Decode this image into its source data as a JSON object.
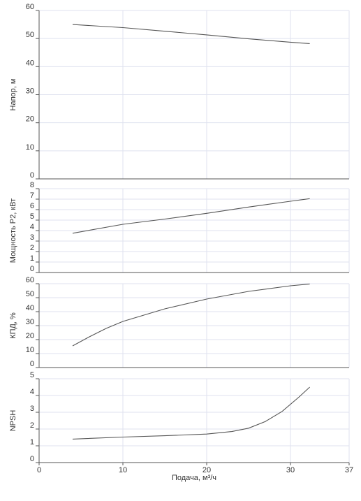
{
  "chart_data": {
    "type": "line",
    "xlabel": "Подача, м³/ч",
    "xlim": [
      0,
      37
    ],
    "xticks": [
      0,
      10,
      20,
      30,
      37
    ],
    "grid": true,
    "colors": {
      "curve": "#555555",
      "grid": "#dfe2ef",
      "axis": "#555555"
    },
    "panels": [
      {
        "ylabel": "Напор, м",
        "ylim": [
          0,
          60
        ],
        "yticks": [
          0,
          10,
          20,
          30,
          40,
          50,
          60
        ],
        "series": [
          {
            "x": [
              4,
              10,
              15,
              20,
              25,
              30,
              32.3
            ],
            "y": [
              55,
              53.9,
              52.6,
              51.3,
              49.9,
              48.7,
              48.2
            ]
          }
        ]
      },
      {
        "ylabel": "Мощность Р2, кВт",
        "ylim": [
          0,
          8
        ],
        "yticks": [
          0,
          1,
          2,
          3,
          4,
          5,
          6,
          7,
          8
        ],
        "series": [
          {
            "x": [
              4,
              10,
              15,
              20,
              25,
              30,
              32.3
            ],
            "y": [
              3.75,
              4.6,
              5.1,
              5.65,
              6.25,
              6.8,
              7.05
            ]
          }
        ]
      },
      {
        "ylabel": "КПД, %",
        "ylim": [
          0,
          60
        ],
        "yticks": [
          0,
          10,
          20,
          30,
          40,
          50,
          60
        ],
        "series": [
          {
            "x": [
              4,
              6,
              8,
              10,
              15,
              20,
              25,
              30,
              32.3
            ],
            "y": [
              15.5,
              22,
              28,
              33,
              42,
              49,
              54.5,
              58.5,
              59.8
            ]
          }
        ]
      },
      {
        "ylabel": "NPSH",
        "ylim": [
          0,
          5
        ],
        "yticks": [
          0,
          1,
          2,
          3,
          4,
          5
        ],
        "series": [
          {
            "x": [
              4,
              10,
              15,
              20,
              23,
              25,
              27,
              29,
              31,
              32.3
            ],
            "y": [
              1.4,
              1.52,
              1.6,
              1.7,
              1.85,
              2.05,
              2.45,
              3.05,
              3.9,
              4.5
            ]
          }
        ]
      }
    ]
  }
}
